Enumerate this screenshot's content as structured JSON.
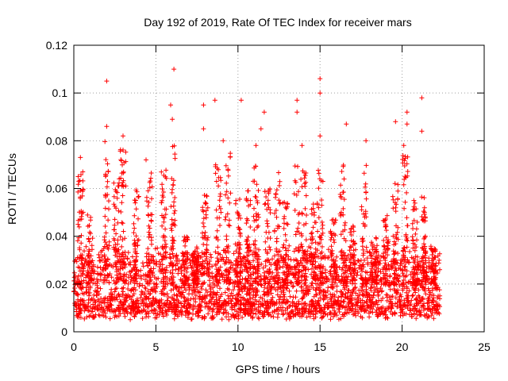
{
  "chart_data": {
    "type": "scatter",
    "title": "Day 192 of 2019, Rate Of TEC Index for receiver mars",
    "xlabel": "GPS time / hours",
    "ylabel": "ROTI / TECUs",
    "xlim": [
      0,
      25
    ],
    "ylim": [
      0,
      0.12
    ],
    "x_ticks": [
      0,
      5,
      10,
      15,
      20,
      25
    ],
    "x_tick_labels": [
      "0",
      "5",
      "10",
      "15",
      "20",
      "25"
    ],
    "y_ticks": [
      0,
      0.02,
      0.04,
      0.06,
      0.08,
      0.1,
      0.12
    ],
    "y_tick_labels": [
      "0",
      "0.02",
      "0.04",
      "0.06",
      "0.08",
      "0.1",
      "0.12"
    ],
    "grid": true,
    "marker": "+",
    "marker_color": "#ff0000",
    "data_x_range": [
      0,
      22.3
    ],
    "baseline_band": [
      0.005,
      0.03
    ],
    "outliers": [
      {
        "x": 2.0,
        "y": 0.105
      },
      {
        "x": 6.1,
        "y": 0.11
      },
      {
        "x": 15.0,
        "y": 0.106
      },
      {
        "x": 21.2,
        "y": 0.098
      },
      {
        "x": 13.6,
        "y": 0.097
      },
      {
        "x": 15.0,
        "y": 0.1
      },
      {
        "x": 7.9,
        "y": 0.095
      },
      {
        "x": 8.6,
        "y": 0.097
      },
      {
        "x": 10.2,
        "y": 0.097
      },
      {
        "x": 11.6,
        "y": 0.092
      },
      {
        "x": 20.3,
        "y": 0.092
      },
      {
        "x": 5.9,
        "y": 0.095
      },
      {
        "x": 13.6,
        "y": 0.092
      },
      {
        "x": 2.0,
        "y": 0.086
      },
      {
        "x": 6.0,
        "y": 0.089
      },
      {
        "x": 16.6,
        "y": 0.087
      },
      {
        "x": 19.6,
        "y": 0.088
      },
      {
        "x": 20.3,
        "y": 0.087
      },
      {
        "x": 7.9,
        "y": 0.085
      },
      {
        "x": 3.0,
        "y": 0.082
      },
      {
        "x": 11.4,
        "y": 0.085
      },
      {
        "x": 21.2,
        "y": 0.084
      },
      {
        "x": 15.0,
        "y": 0.082
      },
      {
        "x": 17.8,
        "y": 0.08
      },
      {
        "x": 9.1,
        "y": 0.08
      },
      {
        "x": 13.9,
        "y": 0.078
      },
      {
        "x": 0.4,
        "y": 0.073
      },
      {
        "x": 4.4,
        "y": 0.072
      },
      {
        "x": 20.1,
        "y": 0.078
      },
      {
        "x": 11.1,
        "y": 0.078
      }
    ],
    "clusters": [
      {
        "x": 0.4,
        "peak": 0.07
      },
      {
        "x": 1.0,
        "peak": 0.05
      },
      {
        "x": 2.0,
        "peak": 0.08
      },
      {
        "x": 2.6,
        "peak": 0.065
      },
      {
        "x": 3.0,
        "peak": 0.078
      },
      {
        "x": 3.8,
        "peak": 0.06
      },
      {
        "x": 4.6,
        "peak": 0.068
      },
      {
        "x": 5.5,
        "peak": 0.07
      },
      {
        "x": 6.0,
        "peak": 0.078
      },
      {
        "x": 6.8,
        "peak": 0.04
      },
      {
        "x": 7.4,
        "peak": 0.035
      },
      {
        "x": 8.0,
        "peak": 0.058
      },
      {
        "x": 8.8,
        "peak": 0.07
      },
      {
        "x": 9.4,
        "peak": 0.075
      },
      {
        "x": 10.0,
        "peak": 0.063
      },
      {
        "x": 10.6,
        "peak": 0.06
      },
      {
        "x": 11.1,
        "peak": 0.07
      },
      {
        "x": 11.8,
        "peak": 0.06
      },
      {
        "x": 12.4,
        "peak": 0.068
      },
      {
        "x": 12.9,
        "peak": 0.055
      },
      {
        "x": 13.6,
        "peak": 0.07
      },
      {
        "x": 14.0,
        "peak": 0.068
      },
      {
        "x": 14.6,
        "peak": 0.055
      },
      {
        "x": 15.0,
        "peak": 0.07
      },
      {
        "x": 15.8,
        "peak": 0.048
      },
      {
        "x": 16.4,
        "peak": 0.07
      },
      {
        "x": 17.0,
        "peak": 0.045
      },
      {
        "x": 17.7,
        "peak": 0.07
      },
      {
        "x": 18.3,
        "peak": 0.04
      },
      {
        "x": 19.0,
        "peak": 0.05
      },
      {
        "x": 19.6,
        "peak": 0.063
      },
      {
        "x": 20.2,
        "peak": 0.075
      },
      {
        "x": 20.8,
        "peak": 0.055
      },
      {
        "x": 21.3,
        "peak": 0.06
      },
      {
        "x": 21.9,
        "peak": 0.035
      }
    ]
  }
}
